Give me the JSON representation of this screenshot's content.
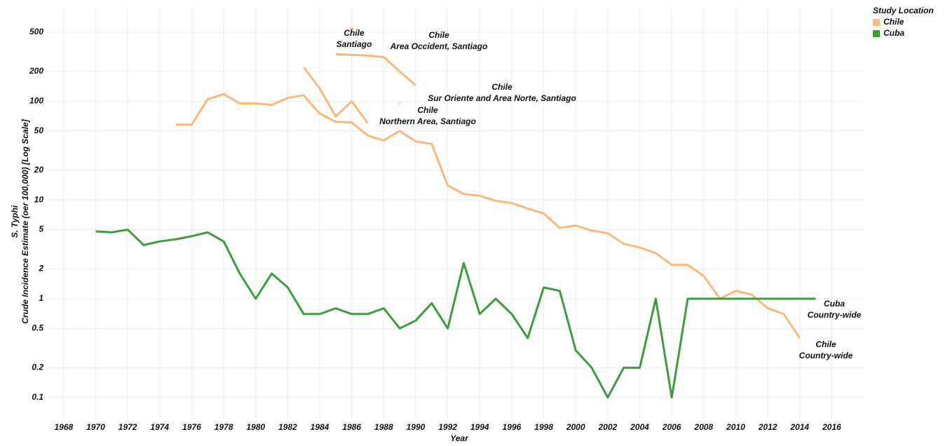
{
  "chart_data": {
    "type": "line",
    "x_label": "Year",
    "y_label": [
      "S. Typhi",
      "Crude Incidence Estimate (oer 100,000) [Log Scale]"
    ],
    "log_y": true,
    "grid": true,
    "xlim": [
      1967,
      2018
    ],
    "ylim": [
      0.06,
      900
    ],
    "xticks": [
      1968,
      1970,
      1972,
      1974,
      1976,
      1978,
      1980,
      1982,
      1984,
      1986,
      1988,
      1990,
      1992,
      1994,
      1996,
      1998,
      2000,
      2002,
      2004,
      2006,
      2008,
      2010,
      2012,
      2014,
      2016
    ],
    "yticks": [
      0.1,
      0.2,
      0.5,
      1,
      2,
      5,
      10,
      20,
      50,
      100,
      200,
      500
    ],
    "legend": {
      "title": "Study Location",
      "position": "top-right",
      "items": [
        {
          "name": "Chile",
          "color": "#f9b97a"
        },
        {
          "name": "Cuba",
          "color": "#3a9e3a"
        }
      ]
    },
    "series": [
      {
        "label": [
          "Chile",
          "Country-wide"
        ],
        "color": "#f9b97a",
        "x": [
          1975,
          1976,
          1977,
          1978,
          1979,
          1980,
          1981,
          1982,
          1983,
          1984,
          1985,
          1986,
          1987,
          1988,
          1989,
          1990,
          1991,
          1992,
          1993,
          1994,
          1995,
          1996,
          1997,
          1998,
          1999,
          2000,
          2001,
          2002,
          2003,
          2004,
          2005,
          2006,
          2007,
          2008,
          2009,
          2010,
          2011,
          2012,
          2013,
          2014
        ],
        "values": [
          58,
          58,
          105,
          118,
          95,
          95,
          92,
          108,
          115,
          75,
          62,
          61,
          45,
          40,
          50,
          39,
          37,
          14,
          11.5,
          11,
          9.8,
          9.3,
          8.2,
          7.3,
          5.2,
          5.5,
          4.9,
          4.6,
          3.6,
          3.3,
          2.9,
          2.2,
          2.2,
          1.7,
          1.0,
          1.2,
          1.1,
          0.8,
          0.7,
          0.4
        ]
      },
      {
        "label": [
          "Chile",
          "Santiago"
        ],
        "color": "#f9b97a",
        "x": [
          1986
        ],
        "values": [
          540
        ]
      },
      {
        "label": [
          "Chile",
          "Area Occident, Santiago"
        ],
        "color": "#f9b97a",
        "x": [
          1985,
          1986,
          1987,
          1988,
          1989,
          1990
        ],
        "values": [
          300,
          295,
          290,
          280,
          200,
          145
        ]
      },
      {
        "label": [
          "Chile",
          "Sur Oriente and Area Norte, Santiago"
        ],
        "color": "#fbe3c9",
        "x": [
          1989
        ],
        "values": [
          95
        ]
      },
      {
        "label": [
          "Chile",
          "Northern Area, Santiago"
        ],
        "color": "#f9b97a",
        "x": [
          1983,
          1984,
          1985,
          1986,
          1987
        ],
        "values": [
          220,
          135,
          70,
          100,
          60
        ]
      },
      {
        "label": [
          "Cuba",
          "Country-wide"
        ],
        "color": "#3a9e3a",
        "x": [
          1970,
          1971,
          1972,
          1973,
          1974,
          1975,
          1976,
          1977,
          1978,
          1979,
          1980,
          1981,
          1982,
          1983,
          1984,
          1985,
          1986,
          1987,
          1988,
          1989,
          1990,
          1991,
          1992,
          1993,
          1994,
          1995,
          1996,
          1997,
          1998,
          1999,
          2000,
          2001,
          2002,
          2003,
          2004,
          2005,
          2006,
          2007,
          2008,
          2009,
          2010,
          2011,
          2012,
          2013,
          2014,
          2015
        ],
        "values": [
          4.8,
          4.7,
          5.0,
          3.5,
          3.8,
          4.0,
          4.3,
          4.7,
          3.8,
          1.8,
          1.0,
          1.8,
          1.3,
          0.7,
          0.7,
          0.8,
          0.7,
          0.7,
          0.8,
          0.5,
          0.6,
          0.9,
          0.5,
          2.3,
          0.7,
          1.0,
          0.7,
          0.4,
          1.3,
          1.2,
          0.3,
          0.2,
          0.1,
          0.2,
          0.2,
          1.0,
          0.1,
          1.0,
          1.0,
          1.0,
          1.0,
          1.0,
          1.0,
          1.0,
          1.0,
          1.0
        ]
      }
    ]
  }
}
